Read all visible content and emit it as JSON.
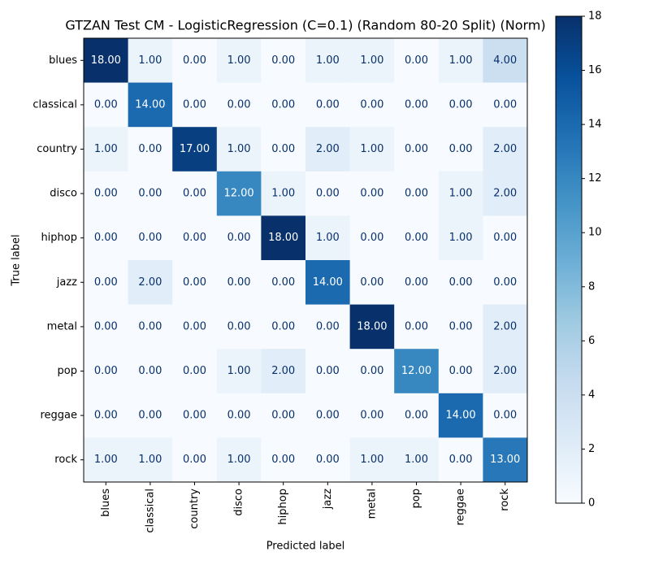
{
  "chart_data": {
    "type": "heatmap",
    "title": "GTZAN Test CM - LogisticRegression (C=0.1) (Random 80-20 Split) (Norm)",
    "xlabel": "Predicted label",
    "ylabel": "True label",
    "x_categories": [
      "blues",
      "classical",
      "country",
      "disco",
      "hiphop",
      "jazz",
      "metal",
      "pop",
      "reggae",
      "rock"
    ],
    "y_categories": [
      "blues",
      "classical",
      "country",
      "disco",
      "hiphop",
      "jazz",
      "metal",
      "pop",
      "reggae",
      "rock"
    ],
    "values": [
      [
        18,
        1,
        0,
        1,
        0,
        1,
        1,
        0,
        1,
        4
      ],
      [
        0,
        14,
        0,
        0,
        0,
        0,
        0,
        0,
        0,
        0
      ],
      [
        1,
        0,
        17,
        1,
        0,
        2,
        1,
        0,
        0,
        2
      ],
      [
        0,
        0,
        0,
        12,
        1,
        0,
        0,
        0,
        1,
        2
      ],
      [
        0,
        0,
        0,
        0,
        18,
        1,
        0,
        0,
        1,
        0
      ],
      [
        0,
        2,
        0,
        0,
        0,
        14,
        0,
        0,
        0,
        0
      ],
      [
        0,
        0,
        0,
        0,
        0,
        0,
        18,
        0,
        0,
        2
      ],
      [
        0,
        0,
        0,
        1,
        2,
        0,
        0,
        12,
        0,
        2
      ],
      [
        0,
        0,
        0,
        0,
        0,
        0,
        0,
        0,
        14,
        0
      ],
      [
        1,
        1,
        0,
        1,
        0,
        0,
        1,
        1,
        0,
        13
      ]
    ],
    "value_labels": [
      [
        "18.00",
        "1.00",
        "0.00",
        "1.00",
        "0.00",
        "1.00",
        "1.00",
        "0.00",
        "1.00",
        "4.00"
      ],
      [
        "0.00",
        "14.00",
        "0.00",
        "0.00",
        "0.00",
        "0.00",
        "0.00",
        "0.00",
        "0.00",
        "0.00"
      ],
      [
        "1.00",
        "0.00",
        "17.00",
        "1.00",
        "0.00",
        "2.00",
        "1.00",
        "0.00",
        "0.00",
        "2.00"
      ],
      [
        "0.00",
        "0.00",
        "0.00",
        "12.00",
        "1.00",
        "0.00",
        "0.00",
        "0.00",
        "1.00",
        "2.00"
      ],
      [
        "0.00",
        "0.00",
        "0.00",
        "0.00",
        "18.00",
        "1.00",
        "0.00",
        "0.00",
        "1.00",
        "0.00"
      ],
      [
        "0.00",
        "2.00",
        "0.00",
        "0.00",
        "0.00",
        "14.00",
        "0.00",
        "0.00",
        "0.00",
        "0.00"
      ],
      [
        "0.00",
        "0.00",
        "0.00",
        "0.00",
        "0.00",
        "0.00",
        "18.00",
        "0.00",
        "0.00",
        "2.00"
      ],
      [
        "0.00",
        "0.00",
        "0.00",
        "1.00",
        "2.00",
        "0.00",
        "0.00",
        "12.00",
        "0.00",
        "2.00"
      ],
      [
        "0.00",
        "0.00",
        "0.00",
        "0.00",
        "0.00",
        "0.00",
        "0.00",
        "0.00",
        "14.00",
        "0.00"
      ],
      [
        "1.00",
        "1.00",
        "0.00",
        "1.00",
        "0.00",
        "0.00",
        "1.00",
        "1.00",
        "0.00",
        "13.00"
      ]
    ],
    "colormap": "Blues",
    "clim": [
      0,
      18
    ],
    "cticks": [
      0,
      2,
      4,
      6,
      8,
      10,
      12,
      14,
      16,
      18
    ]
  }
}
